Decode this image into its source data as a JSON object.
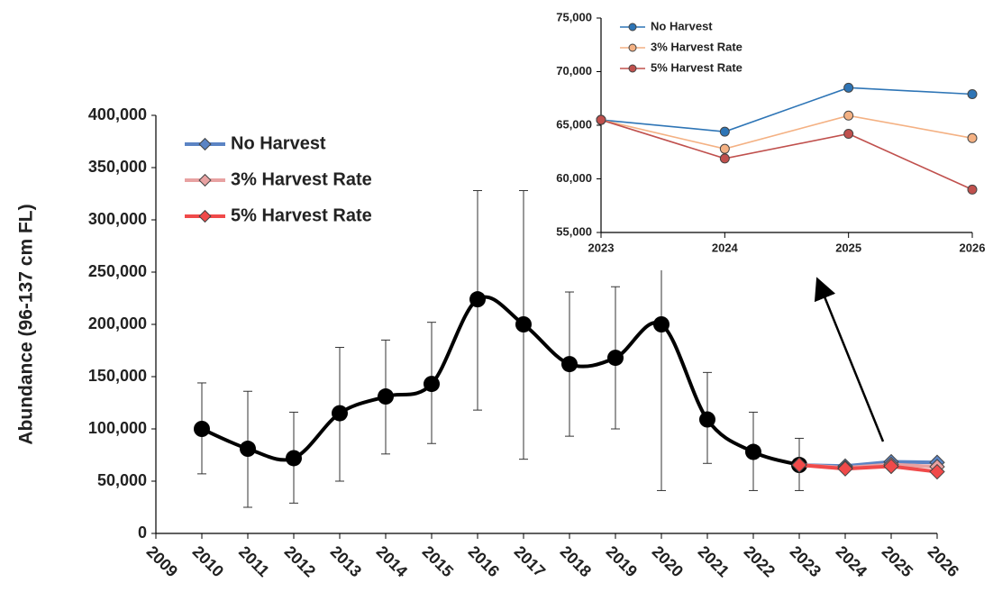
{
  "chart_data": [
    {
      "type": "line",
      "y_label": "Abundance (96-137 cm FL)",
      "xlim": [
        2009,
        2026
      ],
      "xticks": [
        2009,
        2010,
        2011,
        2012,
        2013,
        2014,
        2015,
        2016,
        2017,
        2018,
        2019,
        2020,
        2021,
        2022,
        2023,
        2024,
        2025,
        2026
      ],
      "ylim": [
        0,
        400000
      ],
      "yticks": [
        0,
        {
          "value": 50000,
          "label": "50,000"
        },
        {
          "value": 100000,
          "label": "100,000"
        },
        {
          "value": 150000,
          "label": "150,000"
        },
        {
          "value": 200000,
          "label": "200,000"
        },
        {
          "value": 250000,
          "label": "250,000"
        },
        {
          "value": 300000,
          "label": "300,000"
        },
        {
          "value": 350000,
          "label": "350,000"
        },
        {
          "value": 400000,
          "label": "400,000"
        }
      ],
      "legend": "upper left",
      "marker": "diamond",
      "observed": {
        "color": "#000000",
        "x": [
          2010,
          2011,
          2012,
          2013,
          2014,
          2015,
          2016,
          2017,
          2018,
          2019,
          2020,
          2021,
          2022,
          2023
        ],
        "values": [
          100000,
          81000,
          72000,
          115000,
          131000,
          143000,
          224000,
          200000,
          162000,
          168000,
          200000,
          109000,
          78000,
          65500
        ],
        "lower": [
          57000,
          25000,
          29000,
          50000,
          76000,
          86000,
          118000,
          71000,
          93000,
          100000,
          41000,
          67000,
          41000,
          41000
        ],
        "upper": [
          144000,
          136000,
          116000,
          178000,
          185000,
          202000,
          328000,
          328000,
          231000,
          236000,
          254000,
          154000,
          116000,
          91000
        ]
      },
      "series": [
        {
          "name": "No Harvest",
          "color": "#5b84c4",
          "x": [
            2023,
            2024,
            2025,
            2026
          ],
          "values": [
            65500,
            64400,
            68500,
            67900
          ]
        },
        {
          "name": "3% Harvest Rate",
          "color": "#e8a2a2",
          "x": [
            2023,
            2024,
            2025,
            2026
          ],
          "values": [
            65500,
            62800,
            65900,
            63800
          ]
        },
        {
          "name": "5% Harvest Rate",
          "color": "#f04a4a",
          "x": [
            2023,
            2024,
            2025,
            2026
          ],
          "values": [
            65500,
            61900,
            64200,
            59000
          ]
        }
      ]
    },
    {
      "type": "line",
      "xlim": [
        2023,
        2026
      ],
      "xticks": [
        2023,
        2024,
        2025,
        2026
      ],
      "ylim": [
        55000,
        75000
      ],
      "yticks": [
        {
          "value": 55000,
          "label": "55,000"
        },
        {
          "value": 60000,
          "label": "60,000"
        },
        {
          "value": 65000,
          "label": "65,000"
        },
        {
          "value": 70000,
          "label": "70,000"
        },
        {
          "value": 75000,
          "label": "75,000"
        }
      ],
      "legend": "upper left",
      "marker": "circle",
      "series": [
        {
          "name": "No Harvest",
          "color": "#2e75b6",
          "x": [
            2023,
            2024,
            2025,
            2026
          ],
          "values": [
            65500,
            64400,
            68500,
            67900
          ]
        },
        {
          "name": "3% Harvest Rate",
          "color": "#f4b183",
          "x": [
            2023,
            2024,
            2025,
            2026
          ],
          "values": [
            65500,
            62800,
            65900,
            63800
          ]
        },
        {
          "name": "5% Harvest Rate",
          "color": "#c0504d",
          "x": [
            2023,
            2024,
            2025,
            2026
          ],
          "values": [
            65500,
            61900,
            64200,
            59000
          ]
        }
      ]
    }
  ]
}
